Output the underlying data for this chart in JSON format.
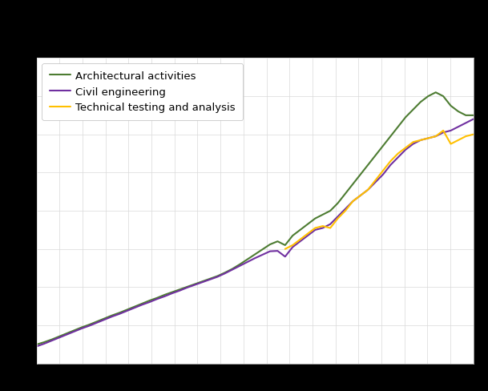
{
  "series": {
    "architectural": {
      "label": "Architectural activities",
      "color": "#4d7c32",
      "data": [
        100.0,
        100.6,
        101.3,
        102.1,
        102.9,
        103.7,
        104.5,
        105.2,
        106.0,
        106.8,
        107.6,
        108.3,
        109.1,
        109.9,
        110.7,
        111.5,
        112.2,
        113.0,
        113.7,
        114.4,
        115.1,
        115.8,
        116.5,
        117.2,
        117.9,
        118.8,
        119.8,
        121.0,
        122.3,
        123.6,
        124.9,
        126.2,
        127.0,
        126.0,
        128.5,
        130.0,
        131.5,
        133.0,
        134.0,
        135.0,
        137.0,
        139.5,
        142.0,
        144.5,
        147.0,
        149.5,
        152.0,
        154.5,
        157.0,
        159.5,
        161.5,
        163.5,
        165.0,
        166.0,
        165.0,
        162.5,
        161.0,
        160.0,
        160.0
      ]
    },
    "civil": {
      "label": "Civil engineering",
      "color": "#7030a0",
      "data": [
        99.5,
        100.2,
        101.0,
        101.8,
        102.6,
        103.4,
        104.2,
        104.9,
        105.7,
        106.5,
        107.3,
        108.0,
        108.8,
        109.6,
        110.4,
        111.1,
        111.9,
        112.6,
        113.4,
        114.1,
        114.9,
        115.6,
        116.3,
        117.0,
        117.7,
        118.6,
        119.6,
        120.6,
        121.6,
        122.6,
        123.5,
        124.4,
        124.5,
        123.0,
        125.5,
        127.0,
        128.5,
        130.0,
        130.5,
        131.5,
        133.5,
        135.5,
        137.5,
        139.0,
        140.5,
        142.5,
        144.5,
        147.0,
        149.0,
        151.0,
        152.5,
        153.5,
        154.0,
        154.5,
        155.5,
        156.0,
        157.0,
        158.0,
        159.0
      ]
    },
    "technical": {
      "label": "Technical testing and analysis",
      "color": "#ffc000",
      "data": [
        null,
        null,
        null,
        null,
        null,
        null,
        null,
        null,
        null,
        null,
        null,
        null,
        null,
        null,
        null,
        null,
        null,
        null,
        null,
        null,
        null,
        null,
        null,
        null,
        null,
        null,
        null,
        null,
        null,
        null,
        null,
        null,
        null,
        125.0,
        126.0,
        127.5,
        129.0,
        130.5,
        131.0,
        130.5,
        133.0,
        135.0,
        137.5,
        139.0,
        140.5,
        143.0,
        145.5,
        148.0,
        150.0,
        151.5,
        153.0,
        153.5,
        154.0,
        154.5,
        156.0,
        152.5,
        153.5,
        154.5,
        155.0
      ]
    }
  },
  "n_points": 59,
  "ylim_min": 95,
  "ylim_max": 175,
  "fig_bg_color": "#000000",
  "plot_bg_color": "#ffffff",
  "grid_color": "#d9d9d9",
  "legend_fontsize": 9.5,
  "line_width": 1.5
}
